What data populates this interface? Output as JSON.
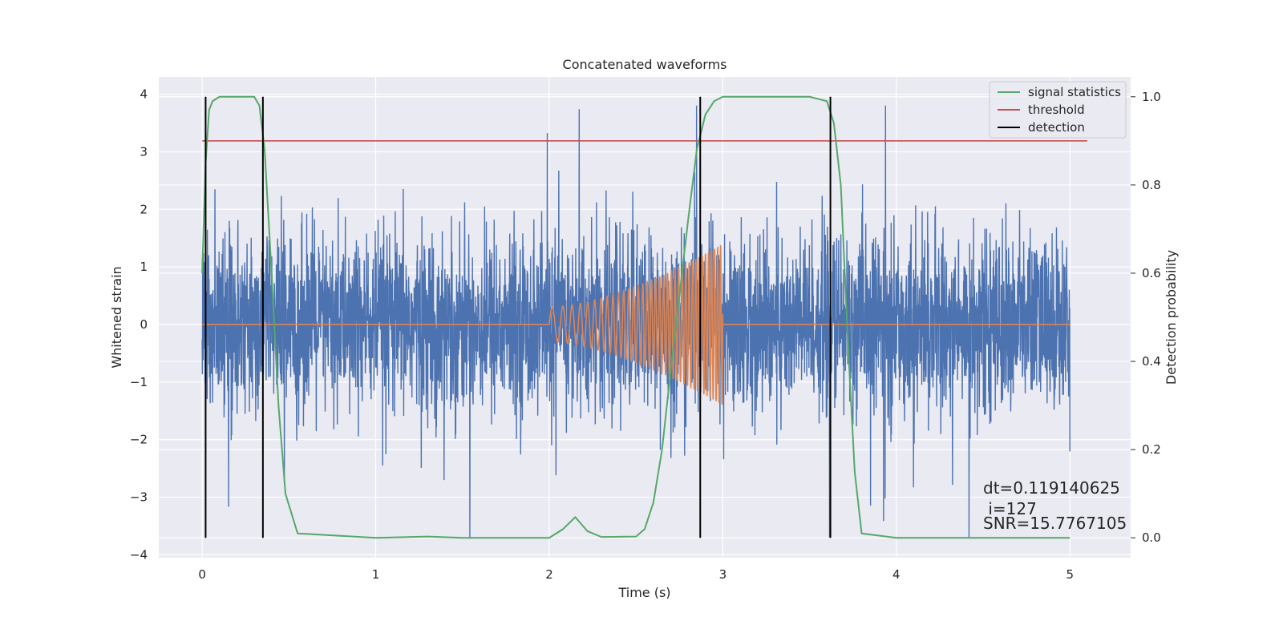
{
  "chart_data": {
    "type": "line",
    "title": "Concatenated waveforms",
    "xlabel": "Time (s)",
    "ylabel": "Whitened strain",
    "y2label": "Detection probability",
    "xlim": [
      -0.25,
      5.35
    ],
    "ylim": [
      -4.05,
      4.3
    ],
    "y2lim": [
      -0.045,
      1.045
    ],
    "xticks": [
      0,
      1,
      2,
      3,
      4,
      5
    ],
    "yticks": [
      -4,
      -3,
      -2,
      -1,
      0,
      1,
      2,
      3,
      4
    ],
    "y2ticks": [
      0.0,
      0.2,
      0.4,
      0.6,
      0.8,
      1.0
    ],
    "xtick_labels": [
      "0",
      "1",
      "2",
      "3",
      "4",
      "5"
    ],
    "ytick_labels": [
      "−4",
      "−3",
      "−2",
      "−1",
      "0",
      "1",
      "2",
      "3",
      "4"
    ],
    "y2tick_labels": [
      "0.0",
      "0.2",
      "0.4",
      "0.6",
      "0.8",
      "1.0"
    ],
    "grid": true,
    "legend_position": "top-right",
    "legend": [
      {
        "label": "signal statistics",
        "color": "#55a868"
      },
      {
        "label": "threshold",
        "color": "#c44e52"
      },
      {
        "label": "detection",
        "color": "#000000"
      }
    ],
    "series": [
      {
        "kind": "noise",
        "color": "#4c72b0",
        "x_range": [
          0,
          5
        ],
        "std": 0.75,
        "peak_max": 3.8,
        "peak_min": -3.7
      },
      {
        "kind": "chirp",
        "color": "#dd8452",
        "x_range": [
          0,
          5
        ],
        "chirp_start": 2.0,
        "chirp_end": 3.0,
        "amp_start": 0.3,
        "amp_end": 1.4,
        "freq_start": 14,
        "freq_end": 60
      },
      {
        "name": "signal statistics",
        "color": "#55a868",
        "axis": "right",
        "x": [
          0,
          0.02,
          0.04,
          0.06,
          0.1,
          0.2,
          0.3,
          0.33,
          0.36,
          0.4,
          0.44,
          0.48,
          0.55,
          1.0,
          1.3,
          1.5,
          2.0,
          2.08,
          2.15,
          2.22,
          2.3,
          2.5,
          2.55,
          2.6,
          2.65,
          2.7,
          2.75,
          2.8,
          2.85,
          2.9,
          2.95,
          3.0,
          3.5,
          3.6,
          3.64,
          3.68,
          3.72,
          3.76,
          3.8,
          4.0,
          4.5,
          5.0
        ],
        "y": [
          0.6,
          0.85,
          0.97,
          0.99,
          1.0,
          1.0,
          1.0,
          0.98,
          0.88,
          0.6,
          0.3,
          0.1,
          0.01,
          0.0,
          0.003,
          0.0,
          0.0,
          0.02,
          0.047,
          0.015,
          0.002,
          0.003,
          0.02,
          0.08,
          0.2,
          0.38,
          0.55,
          0.72,
          0.88,
          0.96,
          0.99,
          1.0,
          1.0,
          0.99,
          0.94,
          0.8,
          0.45,
          0.15,
          0.01,
          0.0,
          0.0,
          0.0
        ]
      },
      {
        "name": "threshold",
        "color": "#c44e52",
        "axis": "right",
        "x": [
          0,
          5.1
        ],
        "y": [
          0.9,
          0.9
        ]
      }
    ],
    "detections": [
      0.02,
      0.35,
      2.87,
      3.62
    ],
    "detection_range_right": [
      0.0,
      1.0
    ],
    "annotations": [
      "dt=0.119140625",
      " i=127",
      "SNR=15.7767105"
    ]
  }
}
